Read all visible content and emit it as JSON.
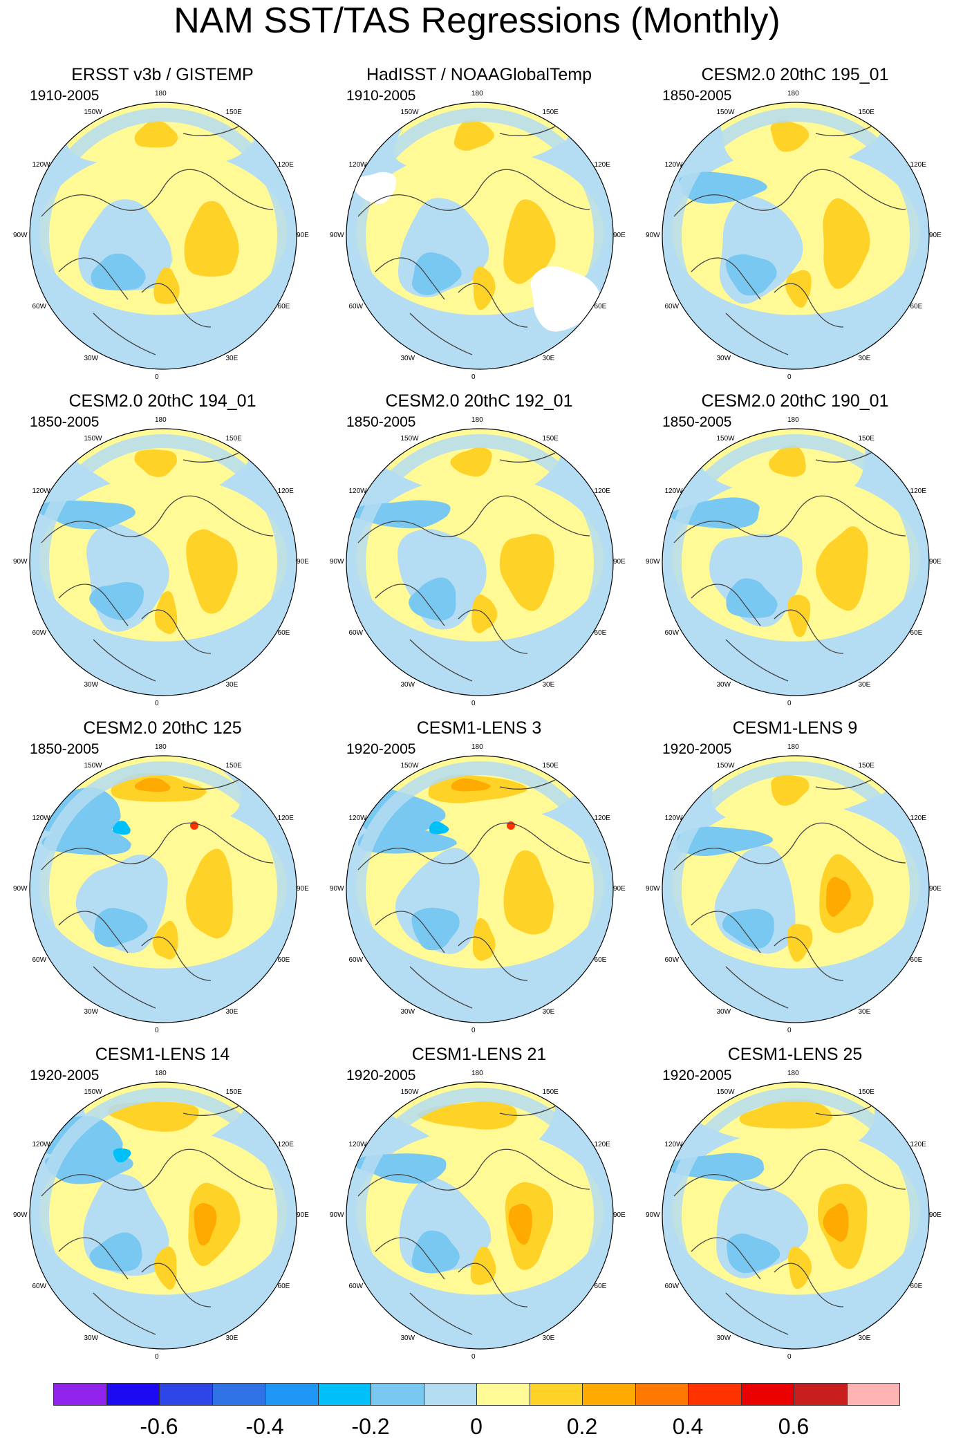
{
  "title": "NAM SST/TAS Regressions (Monthly)",
  "longitude_labels": [
    "180",
    "150E",
    "120E",
    "90E",
    "60E",
    "30E",
    "0",
    "30W",
    "60W",
    "90W",
    "120W",
    "150W"
  ],
  "panels": [
    {
      "title": "ERSST v3b / GISTEMP",
      "period": "1910-2005"
    },
    {
      "title": "HadISST / NOAAGlobalTemp",
      "period": "1910-2005"
    },
    {
      "title": "CESM2.0 20thC 195_01",
      "period": "1850-2005"
    },
    {
      "title": "CESM2.0 20thC 194_01",
      "period": "1850-2005"
    },
    {
      "title": "CESM2.0 20thC 192_01",
      "period": "1850-2005"
    },
    {
      "title": "CESM2.0 20thC 190_01",
      "period": "1850-2005"
    },
    {
      "title": "CESM2.0 20thC 125",
      "period": "1850-2005"
    },
    {
      "title": "CESM1-LENS 3",
      "period": "1920-2005"
    },
    {
      "title": "CESM1-LENS 9",
      "period": "1920-2005"
    },
    {
      "title": "CESM1-LENS 14",
      "period": "1920-2005"
    },
    {
      "title": "CESM1-LENS 21",
      "period": "1920-2005"
    },
    {
      "title": "CESM1-LENS 25",
      "period": "1920-2005"
    }
  ],
  "colorbar": {
    "colors": [
      "#8f23eb",
      "#1e0af2",
      "#2e45e8",
      "#3073e6",
      "#1e96f5",
      "#00c0fa",
      "#78c8f2",
      "#b4dcf2",
      "#fffa96",
      "#ffd228",
      "#ffaa00",
      "#ff7800",
      "#ff3200",
      "#eb0000",
      "#c81e1e",
      "#ffb4b4"
    ],
    "tick_labels": [
      "-0.6",
      "-0.4",
      "-0.2",
      "0",
      "0.2",
      "0.4",
      "0.6"
    ]
  },
  "colors": {
    "neutral_pos": "#fffa96",
    "neutral_neg": "#b4dcf2",
    "light_blue": "#78c8f2",
    "cyan": "#00c0fa",
    "mid_blue": "#1e96f5",
    "gold": "#ffd228",
    "orange": "#ffaa00",
    "dark_orange": "#ff7800",
    "red": "#ff3200",
    "land_outline": "#444444",
    "missing": "#ffffff"
  }
}
